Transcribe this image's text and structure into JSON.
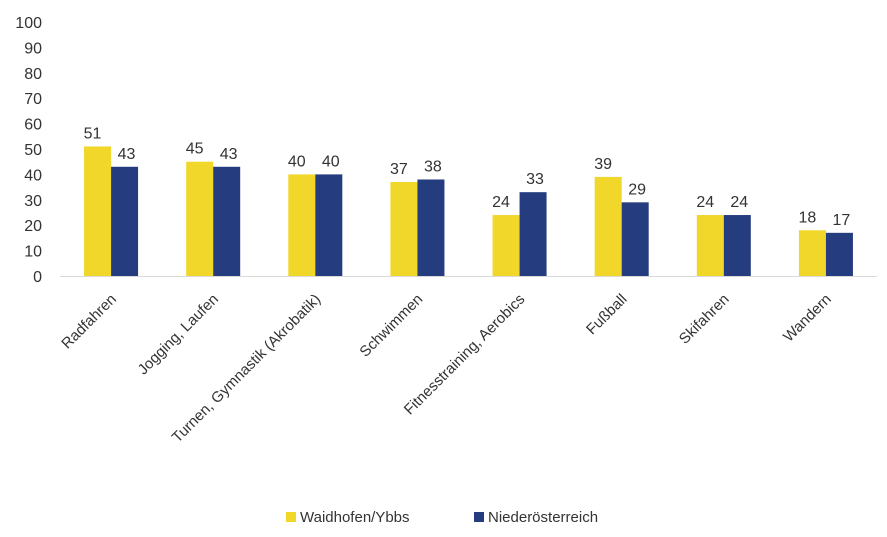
{
  "chart_data": {
    "type": "bar",
    "categories": [
      "Radfahren",
      "Jogging, Laufen",
      "Turnen, Gymnastik (Akrobatik)",
      "Schwimmen",
      "Fitnesstraining, Aerobics",
      "Fußball",
      "Skifahren",
      "Wandern"
    ],
    "series": [
      {
        "name": "Waidhofen/Ybbs",
        "values": [
          51,
          45,
          40,
          37,
          24,
          39,
          24,
          18
        ],
        "color": "#F0D72A"
      },
      {
        "name": "Niederösterreich",
        "values": [
          43,
          43,
          40,
          38,
          33,
          29,
          24,
          17
        ],
        "color": "#253C7F"
      }
    ],
    "ylim": [
      0,
      100
    ],
    "yticks": [
      0,
      10,
      20,
      30,
      40,
      50,
      60,
      70,
      80,
      90,
      100
    ],
    "grid": false,
    "legend_position": "bottom-center",
    "data_labels": true
  }
}
